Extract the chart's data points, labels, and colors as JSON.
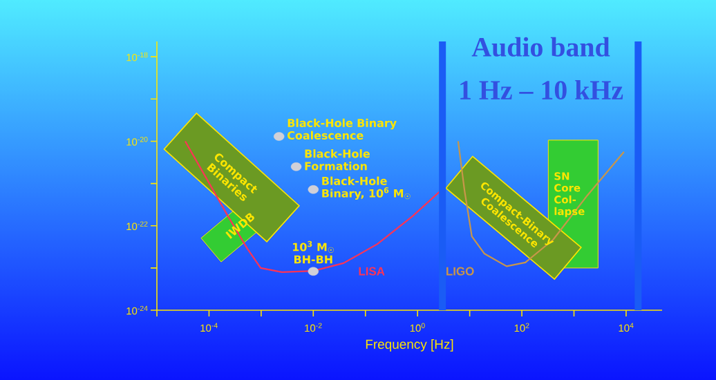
{
  "chart_data": {
    "type": "line",
    "xlabel": "Frequency [Hz]",
    "log": "xy",
    "grid": false,
    "xlim": [
      1e-05,
      49000.0
    ],
    "ylim": [
      1e-24,
      2.3e-18
    ],
    "xticks": [
      {
        "value": 1e-05,
        "label": null
      },
      {
        "value": 0.0001,
        "label": "10$^{-4}$"
      },
      {
        "value": 0.001,
        "label": null
      },
      {
        "value": 0.01,
        "label": "10$^{-2}$"
      },
      {
        "value": 0.1,
        "label": null
      },
      {
        "value": 1,
        "label": "10$^{0}$"
      },
      {
        "value": 10,
        "label": null
      },
      {
        "value": 100,
        "label": "10$^{2}$"
      },
      {
        "value": 1000,
        "label": null
      },
      {
        "value": 10000,
        "label": "10$^{4}$"
      }
    ],
    "yticks": [
      {
        "value": 1e-24,
        "label": "10$^{-24}$"
      },
      {
        "value": 1e-23,
        "label": null
      },
      {
        "value": 1e-22,
        "label": "10$^{-22}$"
      },
      {
        "value": 1e-21,
        "label": null
      },
      {
        "value": 1e-20,
        "label": "10$^{-20}$"
      },
      {
        "value": 1e-19,
        "label": null
      },
      {
        "value": 1e-18,
        "label": "10$^{-18}$"
      }
    ],
    "series": [
      {
        "name": "LISA",
        "color": "#ff3355",
        "marker": "none",
        "x": [
          3.5e-05,
          0.00023,
          0.00054,
          0.00098,
          0.0025,
          0.01,
          0.038,
          0.17,
          0.81,
          2.6
        ],
        "values": [
          1e-20,
          1.7e-22,
          2.9e-23,
          1e-23,
          8e-24,
          8.5e-24,
          1.3e-23,
          3.7e-23,
          1.7e-22,
          6.3e-22
        ]
      },
      {
        "name": "LIGO",
        "color": "#c8964a",
        "marker": "none",
        "x": [
          6,
          8,
          11,
          19,
          51,
          117,
          400,
          1800,
          9100
        ],
        "values": [
          1e-20,
          6.5e-22,
          5.6e-23,
          2.2e-23,
          1.1e-23,
          1.35e-23,
          4.7e-23,
          5.2e-22,
          5.6e-21
        ]
      },
      {
        "type": "scatter",
        "color": "#d0d0d8",
        "marker": "circle",
        "x": [
          0.0022,
          0.0047,
          0.01,
          0.01
        ],
        "values": [
          1.3e-20,
          2.5e-21,
          7.2e-22,
          8.3e-24
        ]
      }
    ],
    "ref_lines": [
      {
        "axis": "x",
        "value": 3,
        "color": "#1a5cf5"
      },
      {
        "axis": "x",
        "value": 17000,
        "color": "#1a5cf5"
      }
    ],
    "annotations": [
      "Audio band",
      "1 Hz – 10 kHz",
      {
        "text": "Black-Hole Binary Coalescence",
        "x": 0.0022,
        "y": 1.3e-20
      },
      {
        "text": "Black-Hole Formation",
        "x": 0.0047,
        "y": 2.5e-21
      },
      {
        "text": "Black-Hole Binary, 10$^{6}$ M$_{☉}$",
        "x": 0.01,
        "y": 7.2e-22
      },
      {
        "text": "10$^{3}$ M$_{☉}$ BH-BH",
        "x": 0.01,
        "y": 8.3e-24
      },
      "Compact Binaries",
      "IWDB",
      "Compact-Binary Coalescence",
      "SN Core Col-lapse"
    ]
  }
}
